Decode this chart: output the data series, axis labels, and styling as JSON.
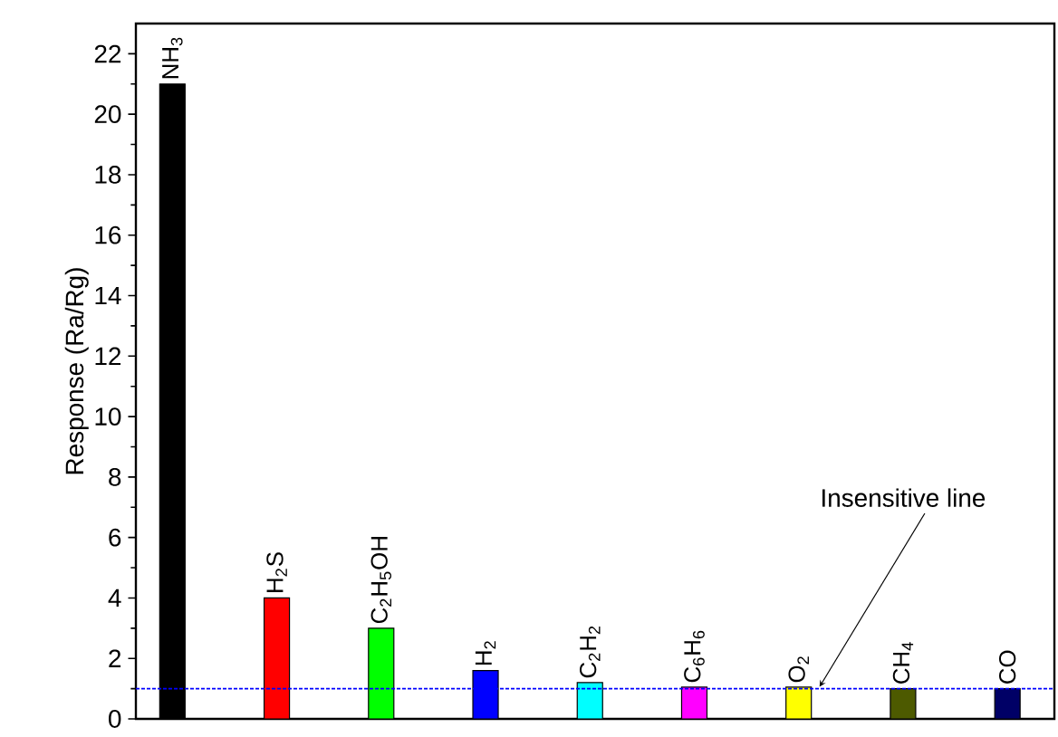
{
  "chart_data": {
    "type": "bar",
    "ylabel": "Response (Ra/Rg)",
    "categories": [
      "NH$_{3}$",
      "H$_{2}$S",
      "C$_{2}$H$_{5}$OH",
      "H$_{2}$",
      "C$_{2}$H$_{2}$",
      "C$_{6}$H$_{6}$",
      "O$_{2}$",
      "CH$_{4}$",
      "CO"
    ],
    "values": [
      21,
      4,
      3,
      1.6,
      1.2,
      1.05,
      1.05,
      1.0,
      1.0
    ],
    "colors": [
      "#000000",
      "#ff0000",
      "#00ff00",
      "#0000ff",
      "#00ffff",
      "#ff00ff",
      "#ffff00",
      "#4d5a00",
      "#000066"
    ],
    "ylim": [
      0,
      23
    ],
    "yticks": [
      0,
      2,
      4,
      6,
      8,
      10,
      12,
      14,
      16,
      18,
      20,
      22
    ],
    "ref_lines": [
      {
        "axis": "y",
        "value": 1,
        "label": "Insensitive line",
        "color": "#0000ff",
        "line_style": "dashed"
      }
    ],
    "grid": false
  }
}
